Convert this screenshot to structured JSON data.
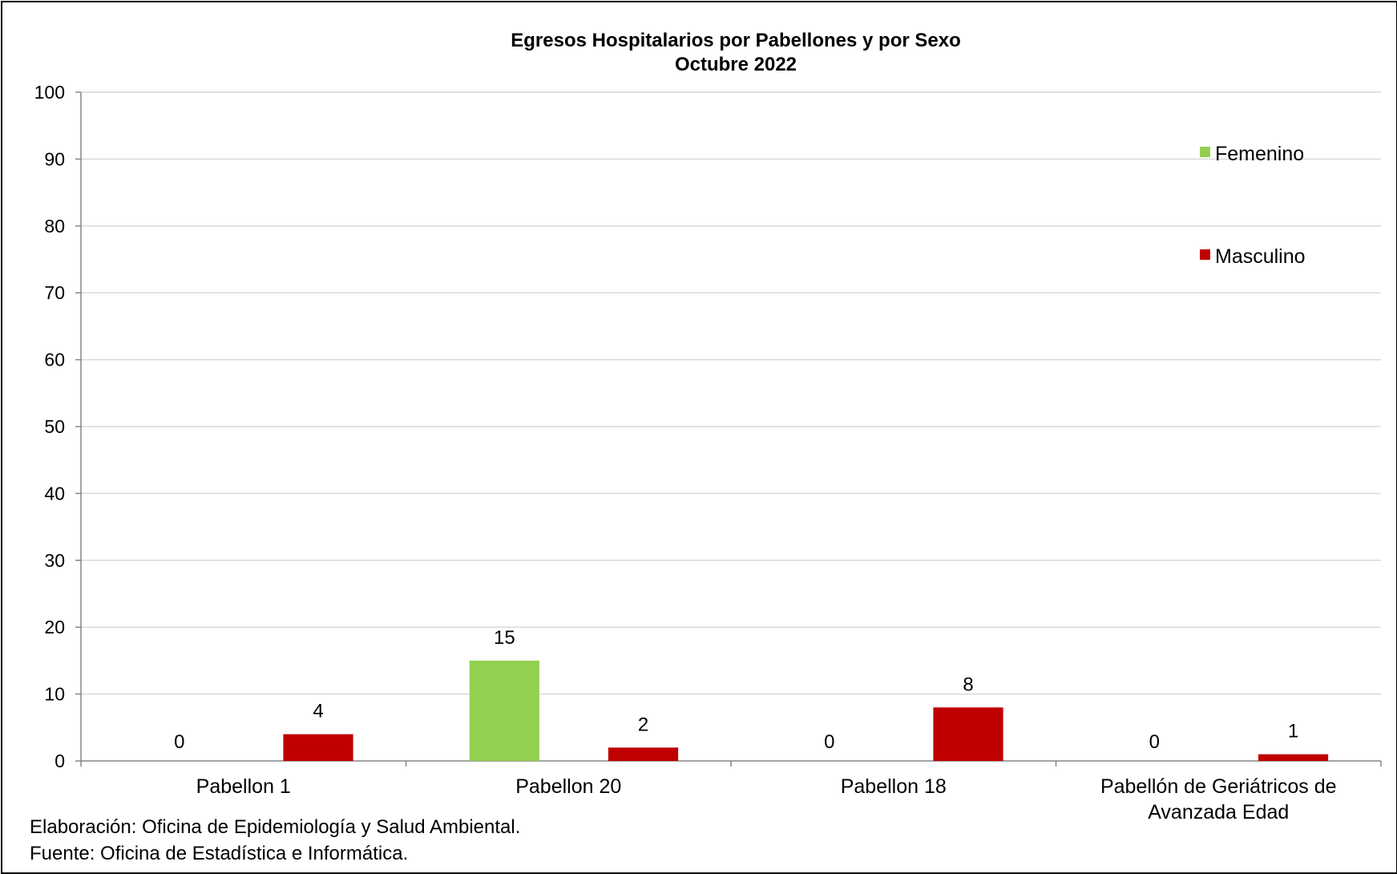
{
  "chart_data": {
    "type": "bar",
    "title": "Egresos Hospitalarios por Pabellones y por Sexo",
    "subtitle": "Octubre 2022",
    "categories": [
      [
        "Pabellon 1"
      ],
      [
        "Pabellon 20"
      ],
      [
        "Pabellon 18"
      ],
      [
        "Pabellón de Geriátricos de",
        "Avanzada Edad"
      ]
    ],
    "series": [
      {
        "name": "Femenino",
        "color": "#92d050",
        "values": [
          0,
          15,
          0,
          0
        ]
      },
      {
        "name": "Masculino",
        "color": "#c00000",
        "values": [
          4,
          2,
          8,
          1
        ]
      }
    ],
    "ylim": [
      0,
      100
    ],
    "yticks": [
      0,
      10,
      20,
      30,
      40,
      50,
      60,
      70,
      80,
      90,
      100
    ],
    "grid": true,
    "legend_position": "right"
  },
  "notes": {
    "elaboracion": "Elaboración: Oficina de Epidemiología y Salud Ambiental.",
    "fuente": "Fuente:  Oficina de Estadística e Informática."
  }
}
